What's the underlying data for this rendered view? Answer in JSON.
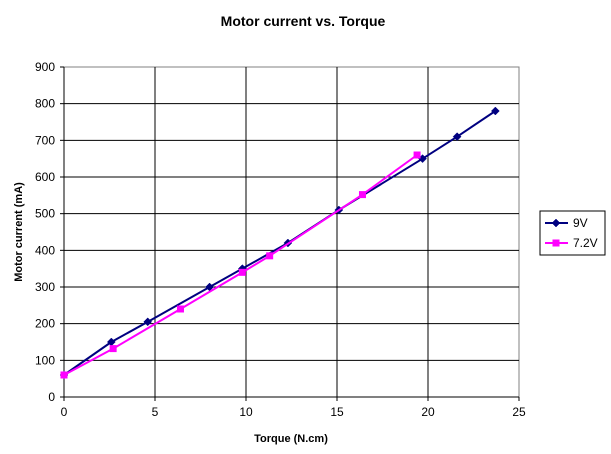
{
  "chart_data": {
    "type": "line",
    "title": "Motor current vs. Torque",
    "xlabel": "Torque (N.cm)",
    "ylabel": "Motor current (mA)",
    "xlim": [
      0,
      25
    ],
    "ylim": [
      0,
      900
    ],
    "xticks": [
      "0",
      "5",
      "10",
      "15",
      "20",
      "25"
    ],
    "yticks": [
      "0",
      "100",
      "200",
      "300",
      "400",
      "500",
      "600",
      "700",
      "800",
      "900"
    ],
    "grid": true,
    "legend_position": "right",
    "series": [
      {
        "name": "9V",
        "color": "#000080",
        "marker": "diamond",
        "x": [
          0,
          2.6,
          4.6,
          8.0,
          9.8,
          12.3,
          15.1,
          19.7,
          21.6,
          23.7
        ],
        "y": [
          60,
          150,
          205,
          300,
          350,
          420,
          510,
          650,
          710,
          780
        ]
      },
      {
        "name": "7.2V",
        "color": "#ff00ff",
        "marker": "square",
        "x": [
          0,
          2.7,
          6.4,
          9.8,
          11.3,
          16.4,
          19.4
        ],
        "y": [
          60,
          132,
          240,
          340,
          385,
          552,
          660
        ]
      }
    ]
  }
}
